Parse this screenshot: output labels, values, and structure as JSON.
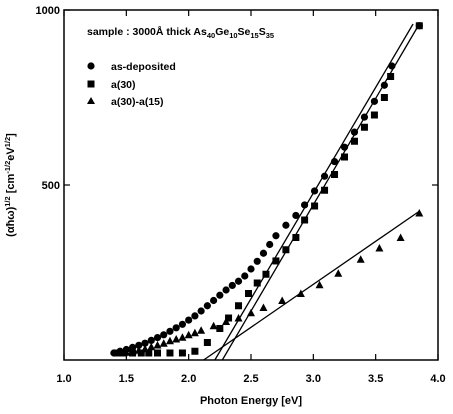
{
  "chart_data": {
    "type": "scatter",
    "title": "sample : 3000Å thick As40Ge10Se15S35",
    "title_parts": {
      "prefix": "sample : 3000Å thick As",
      "s1": "40",
      "t1": "Ge",
      "s2": "10",
      "t2": "Se",
      "s3": "15",
      "t3": "S",
      "s4": "35"
    },
    "xlabel": "Photon Energy [eV]",
    "ylabel_parts": {
      "a": "(αħω)",
      "a_sup": "1/2",
      "b": " [cm",
      "b_sup": "-1/2",
      "c": "eV",
      "c_sup": "1/2",
      "d": "]"
    },
    "xlim": [
      1.0,
      4.0
    ],
    "ylim": [
      0,
      1000
    ],
    "x_ticks": [
      "1.0",
      "1.5",
      "2.0",
      "2.5",
      "3.0",
      "3.5",
      "4.0"
    ],
    "y_ticks": [
      "500",
      "1000"
    ],
    "grid": false,
    "legend_position": "top-left",
    "series": [
      {
        "name": "as-deposited",
        "marker": "circle",
        "x": [
          1.4,
          1.45,
          1.5,
          1.55,
          1.6,
          1.65,
          1.7,
          1.75,
          1.8,
          1.85,
          1.9,
          1.95,
          2.0,
          2.05,
          2.1,
          2.15,
          2.2,
          2.25,
          2.3,
          2.35,
          2.4,
          2.45,
          2.5,
          2.55,
          2.6,
          2.65,
          2.7,
          2.78,
          2.86,
          2.93,
          3.01,
          3.09,
          3.17,
          3.25,
          3.33,
          3.41,
          3.49,
          3.57,
          3.63,
          3.85
        ],
        "y": [
          20,
          25,
          30,
          36,
          42,
          48,
          56,
          64,
          72,
          82,
          92,
          102,
          114,
          126,
          140,
          155,
          170,
          185,
          200,
          213,
          225,
          240,
          260,
          282,
          305,
          330,
          355,
          385,
          413,
          443,
          483,
          525,
          567,
          608,
          651,
          694,
          739,
          785,
          840,
          955
        ]
      },
      {
        "name": "a(30)",
        "marker": "square",
        "x": [
          1.42,
          1.48,
          1.55,
          1.62,
          1.68,
          1.75,
          1.85,
          1.95,
          2.05,
          2.15,
          2.25,
          2.32,
          2.4,
          2.48,
          2.55,
          2.62,
          2.7,
          2.78,
          2.86,
          2.93,
          3.01,
          3.09,
          3.17,
          3.25,
          3.33,
          3.41,
          3.49,
          3.57,
          3.62,
          3.85
        ],
        "y": [
          20,
          20,
          20,
          20,
          20,
          20,
          20,
          20,
          25,
          50,
          90,
          120,
          155,
          190,
          220,
          245,
          283,
          315,
          350,
          400,
          440,
          485,
          530,
          580,
          625,
          665,
          700,
          750,
          810,
          955
        ]
      },
      {
        "name": "a(30)-a(15)",
        "marker": "triangle",
        "x": [
          1.45,
          1.5,
          1.55,
          1.6,
          1.65,
          1.7,
          1.75,
          1.8,
          1.85,
          1.9,
          1.95,
          2.0,
          2.05,
          2.1,
          2.2,
          2.3,
          2.4,
          2.5,
          2.6,
          2.75,
          2.9,
          3.05,
          3.2,
          3.38,
          3.53,
          3.7,
          3.85
        ],
        "y": [
          20,
          22,
          25,
          28,
          32,
          38,
          43,
          48,
          55,
          60,
          65,
          72,
          78,
          85,
          98,
          110,
          120,
          135,
          150,
          170,
          190,
          215,
          248,
          288,
          320,
          350,
          420
        ]
      }
    ],
    "fit_lines": [
      {
        "x": [
          2.27,
          3.85
        ],
        "y": [
          0,
          960
        ]
      },
      {
        "x": [
          2.21,
          3.8
        ],
        "y": [
          0,
          960
        ]
      },
      {
        "x": [
          2.12,
          3.85
        ],
        "y": [
          0,
          425
        ]
      }
    ]
  }
}
